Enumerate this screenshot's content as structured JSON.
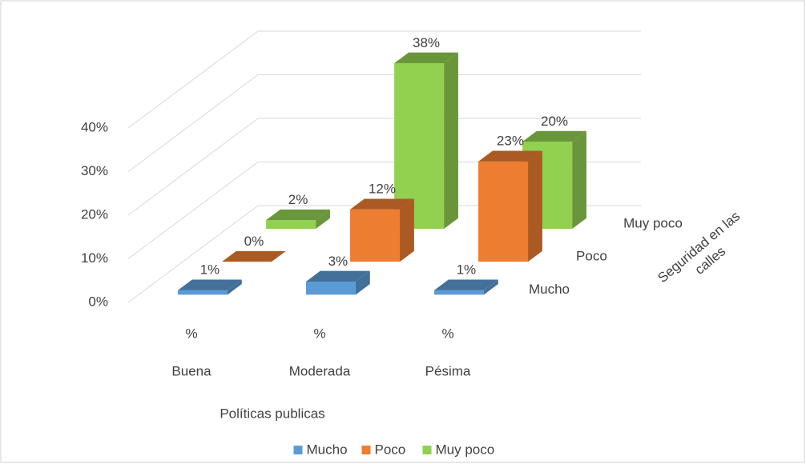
{
  "chart_data": {
    "type": "bar3d",
    "categories": [
      [
        "%",
        "Buena"
      ],
      [
        "%",
        "Moderada"
      ],
      [
        "%",
        "Pésima"
      ]
    ],
    "xlabel": "Políticas publicas",
    "zlabel": [
      "Seguridad en las",
      "calles"
    ],
    "series": [
      {
        "name": "Mucho",
        "color": "#5b9bd5",
        "values": [
          1,
          3,
          1
        ],
        "value_labels": [
          "1%",
          "3%",
          "1%"
        ]
      },
      {
        "name": "Poco",
        "color": "#ed7d31",
        "values": [
          0,
          12,
          23
        ],
        "value_labels": [
          "0%",
          "12%",
          "23%"
        ]
      },
      {
        "name": "Muy poco",
        "color": "#92d050",
        "values": [
          2,
          38,
          20
        ],
        "value_labels": [
          "2%",
          "38%",
          "20%"
        ]
      }
    ],
    "ylim": [
      0,
      40
    ],
    "yticks": [
      {
        "value": 0,
        "label": "0%"
      },
      {
        "value": 10,
        "label": "10%"
      },
      {
        "value": 20,
        "label": "20%"
      },
      {
        "value": 30,
        "label": "30%"
      },
      {
        "value": 40,
        "label": "40%"
      }
    ],
    "grid": true,
    "legend": "bottom"
  }
}
